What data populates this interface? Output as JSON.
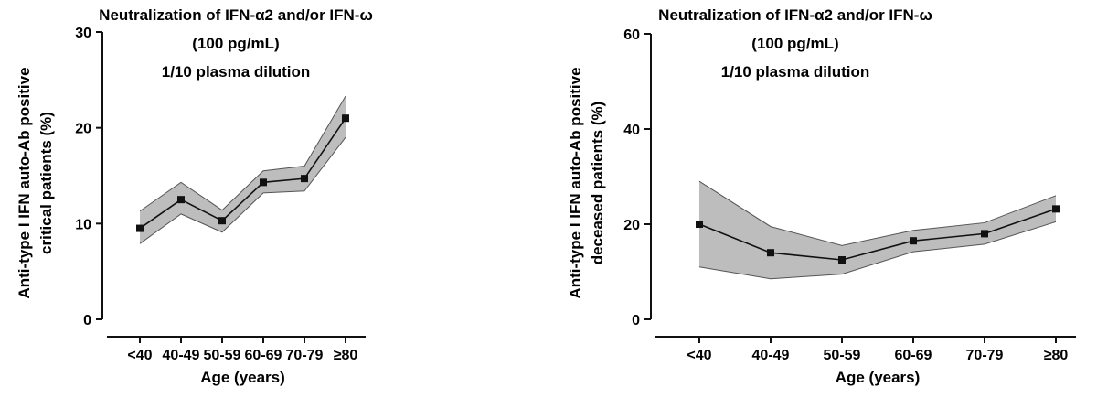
{
  "chart_data": [
    {
      "type": "line",
      "title_lines": [
        "Neutralization of IFN-α2 and/or IFN-ω",
        "(100 pg/mL)",
        "1/10 plasma dilution"
      ],
      "xlabel": "Age (years)",
      "ylabel_lines": [
        "Anti-type I IFN auto-Ab positive",
        "critical patients (%)"
      ],
      "categories": [
        "<40",
        "40-49",
        "50-59",
        "60-69",
        "70-79",
        "≥80"
      ],
      "yticks": [
        0,
        10,
        20,
        30
      ],
      "ylim": [
        0,
        30
      ],
      "values": [
        9.5,
        12.5,
        10.3,
        14.3,
        14.7,
        21.0
      ],
      "ci_lower": [
        7.9,
        11.0,
        9.1,
        13.2,
        13.4,
        19.0
      ],
      "ci_upper": [
        11.3,
        14.3,
        11.4,
        15.5,
        16.0,
        23.3
      ]
    },
    {
      "type": "line",
      "title_lines": [
        "Neutralization of IFN-α2 and/or IFN-ω",
        "(100 pg/mL)",
        "1/10 plasma dilution"
      ],
      "xlabel": "Age (years)",
      "ylabel_lines": [
        "Anti-type I IFN auto-Ab positive",
        "deceased patients (%)"
      ],
      "categories": [
        "<40",
        "40-49",
        "50-59",
        "60-69",
        "70-79",
        "≥80"
      ],
      "yticks": [
        0,
        20,
        40,
        60
      ],
      "ylim": [
        0,
        60
      ],
      "values": [
        20.0,
        14.0,
        12.5,
        16.5,
        18.0,
        23.2
      ],
      "ci_lower": [
        11.0,
        8.5,
        9.5,
        14.2,
        15.8,
        20.5
      ],
      "ci_upper": [
        29.0,
        19.5,
        15.5,
        18.7,
        20.3,
        26.0
      ]
    }
  ]
}
